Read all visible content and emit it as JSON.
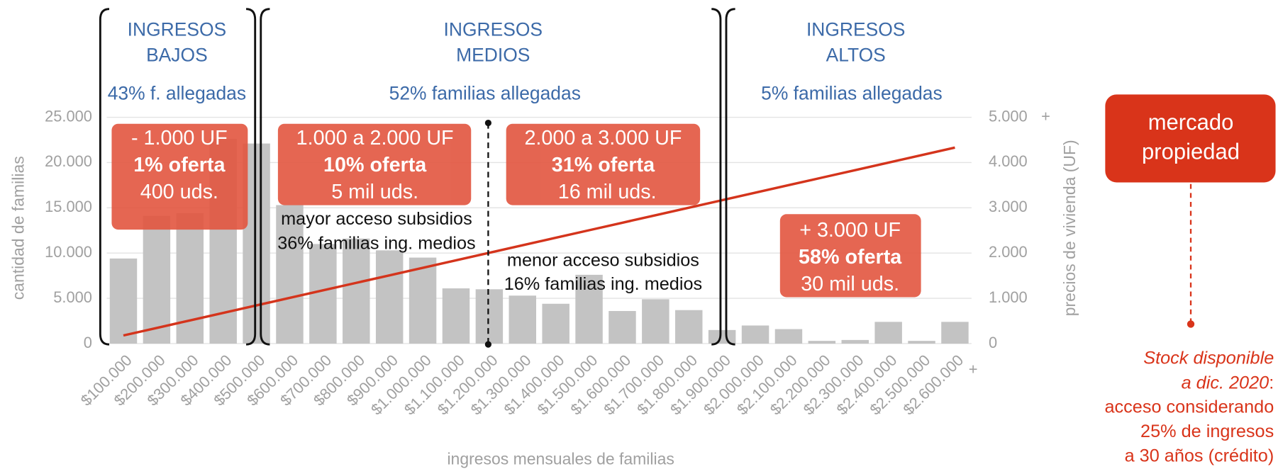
{
  "chart_data": {
    "type": "bar",
    "categories": [
      "$100.000",
      "$200.000",
      "$300.000",
      "$400.000",
      "$500.000",
      "$600.000",
      "$700.000",
      "$800.000",
      "$900.000",
      "$1.000.000",
      "$1.100.000",
      "$1.200.000",
      "$1.300.000",
      "$1.400.000",
      "$1.500.000",
      "$1.600.000",
      "$1.700.000",
      "$1.800.000",
      "$1.900.000",
      "$2.000.000",
      "$2.100.000",
      "$2.200.000",
      "$2.300.000",
      "$2.400.000",
      "$2.500.000",
      "$2.600.000"
    ],
    "x_overflow_label": "+",
    "series": [
      {
        "type": "bar",
        "color": "#c3c3c3",
        "values": [
          9400,
          14100,
          14400,
          22600,
          22100,
          15300,
          11000,
          11600,
          10300,
          9500,
          6100,
          6000,
          5300,
          4400,
          7600,
          3600,
          4900,
          3700,
          1500,
          2000,
          1600,
          300,
          400,
          2400,
          300,
          2400
        ]
      },
      {
        "type": "line",
        "axis": "y2",
        "color": "#d4341c",
        "values": [
          180,
          346,
          512,
          678,
          844,
          1010,
          1176,
          1342,
          1508,
          1674,
          1840,
          2006,
          2172,
          2338,
          2504,
          2670,
          2836,
          3002,
          3168,
          3334,
          3500,
          3666,
          3832,
          3998,
          4164,
          4330
        ]
      }
    ],
    "x_label": "ingresos mensuales de familias",
    "y_label": "cantidad de familias",
    "y2_label": "precios de vivienda (UF)",
    "ylim": [
      0,
      25000
    ],
    "yticks": [
      0,
      {
        "value": 5000,
        "label": "5.000"
      },
      {
        "value": 10000,
        "label": "10.000"
      },
      {
        "value": 15000,
        "label": "15.000"
      },
      {
        "value": 20000,
        "label": "20.000"
      },
      {
        "value": 25000,
        "label": "25.000"
      }
    ],
    "y2lim": [
      0,
      5000
    ],
    "y2ticks": [
      0,
      {
        "value": 1000,
        "label": "1.000"
      },
      {
        "value": 2000,
        "label": "2.000"
      },
      {
        "value": 3000,
        "label": "3.000"
      },
      {
        "value": 4000,
        "label": "4.000"
      },
      {
        "value": 5000,
        "label": "5.000"
      }
    ],
    "y2_overflow_label": "+",
    "grid": true,
    "sections": [
      {
        "title": [
          "INGRESOS",
          "BAJOS"
        ],
        "share": "43% f. allegadas"
      },
      {
        "title": [
          "INGRESOS",
          "MEDIOS"
        ],
        "share": "52% familias allegadas"
      },
      {
        "title": [
          "INGRESOS",
          "ALTOS"
        ],
        "share": "5% familias allegadas"
      }
    ],
    "boxes": [
      [
        "- 1.000 UF",
        "1% oferta",
        "400 uds."
      ],
      [
        "1.000 a 2.000 UF",
        "10% oferta",
        "5 mil uds."
      ],
      [
        "2.000 a 3.000 UF",
        "31% oferta",
        "16 mil uds."
      ],
      [
        "+ 3.000 UF",
        "58% oferta",
        "30 mil uds."
      ]
    ],
    "notes": [
      [
        "mayor acceso subsidios",
        "36% familias ing. medios"
      ],
      [
        "menor acceso subsidios",
        "16% familias ing. medios"
      ]
    ],
    "side_box": [
      "mercado",
      "propiedad"
    ],
    "side_note": {
      "italic": [
        "Stock disponible",
        "a dic. 2020"
      ],
      "colon": ":",
      "lines": [
        "acceso considerando",
        "25% de ingresos",
        "a 30 años (crédito)"
      ]
    }
  }
}
